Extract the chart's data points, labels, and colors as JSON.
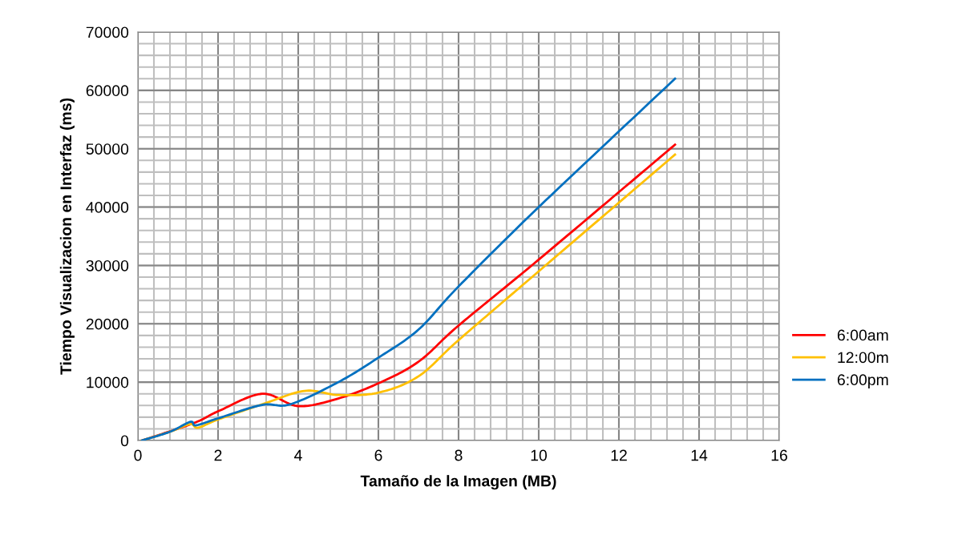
{
  "chart_data": {
    "type": "line",
    "xlabel": "Tamaño de la Imagen (MB)",
    "ylabel": "Tiempo Visualizacion en Interfaz (ms)",
    "xlim": [
      0,
      16
    ],
    "xticks": [
      0,
      2,
      4,
      6,
      8,
      10,
      12,
      14,
      16
    ],
    "ylim": [
      0,
      70000
    ],
    "yticks": [
      0,
      10000,
      20000,
      30000,
      40000,
      50000,
      60000,
      70000
    ],
    "grid": true,
    "legend": "right",
    "marker": "none",
    "line_style": "solid",
    "series": [
      {
        "name": "6:00am",
        "color": "#ff0000",
        "x": [
          0.1,
          1.4,
          2,
          3.1,
          4.0,
          5,
          6,
          7,
          8,
          10,
          13.4
        ],
        "values": [
          0,
          3000,
          5000,
          8000,
          5900,
          7200,
          9800,
          13500,
          19700,
          31000,
          50700
        ]
      },
      {
        "name": "12:00m",
        "color": "#ffc000",
        "x": [
          0.1,
          0.8,
          1.3,
          1.5,
          2,
          3.1,
          4.16,
          5.0,
          6.0,
          7,
          8,
          10,
          13.4
        ],
        "values": [
          0,
          1500,
          2800,
          2200,
          3600,
          6200,
          8500,
          7800,
          8200,
          11000,
          17200,
          29000,
          49000
        ]
      },
      {
        "name": "6:00pm",
        "color": "#0070c0",
        "x": [
          0.1,
          0.8,
          1.31,
          1.45,
          2,
          3.1,
          3.8,
          5,
          6.0,
          7,
          8,
          10,
          13.4
        ],
        "values": [
          0,
          1500,
          3200,
          2600,
          3800,
          6100,
          6200,
          10000,
          14200,
          19000,
          26400,
          40000,
          62000
        ]
      }
    ]
  }
}
